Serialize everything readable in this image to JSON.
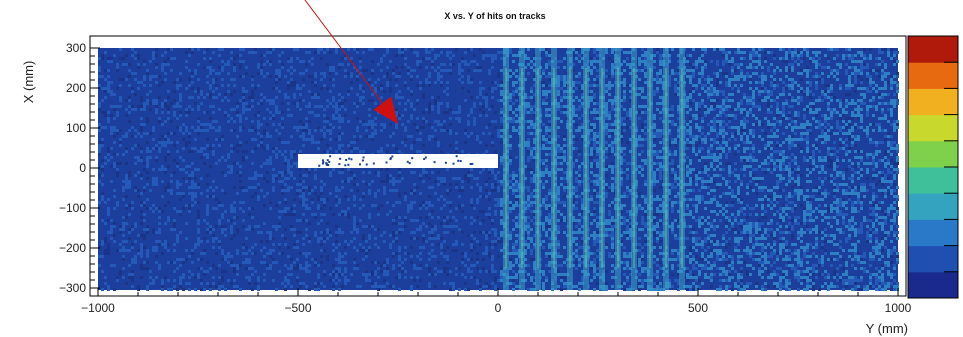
{
  "chart_data": {
    "type": "heatmap",
    "title": "X vs. Y of hits on tracks",
    "xlabel": "Y (mm)",
    "ylabel": "X (mm)",
    "xlim": [
      -1020,
      1020
    ],
    "ylim": [
      -320,
      330
    ],
    "x_ticks": [
      -1000,
      -500,
      0,
      500,
      1000
    ],
    "y_ticks": [
      -300,
      -200,
      -100,
      0,
      100,
      200,
      300
    ],
    "x_tick_labels": [
      "−1000",
      "−500",
      "0",
      "500",
      "1000"
    ],
    "y_tick_labels": [
      "−300",
      "−200",
      "−100",
      "0",
      "100",
      "200",
      "300"
    ],
    "hit_region": {
      "x": [
        -1000,
        1000
      ],
      "y": [
        -305,
        300
      ]
    },
    "empty_region": {
      "x": [
        -500,
        0
      ],
      "y": [
        0,
        35
      ]
    },
    "dense_strips_x": [
      20,
      60,
      100,
      140,
      180,
      220,
      260,
      300,
      340,
      380,
      420,
      460
    ],
    "colorbar": {
      "colors": [
        "#1a2a8c",
        "#1f4fb0",
        "#2a78c8",
        "#33a3c0",
        "#3fbf9a",
        "#7fd04a",
        "#c8d82c",
        "#f0b020",
        "#e86a10",
        "#b01a0a"
      ]
    },
    "annotation": {
      "type": "arrow",
      "color": "#d01010",
      "points_to": [
        -250,
        110
      ]
    }
  }
}
